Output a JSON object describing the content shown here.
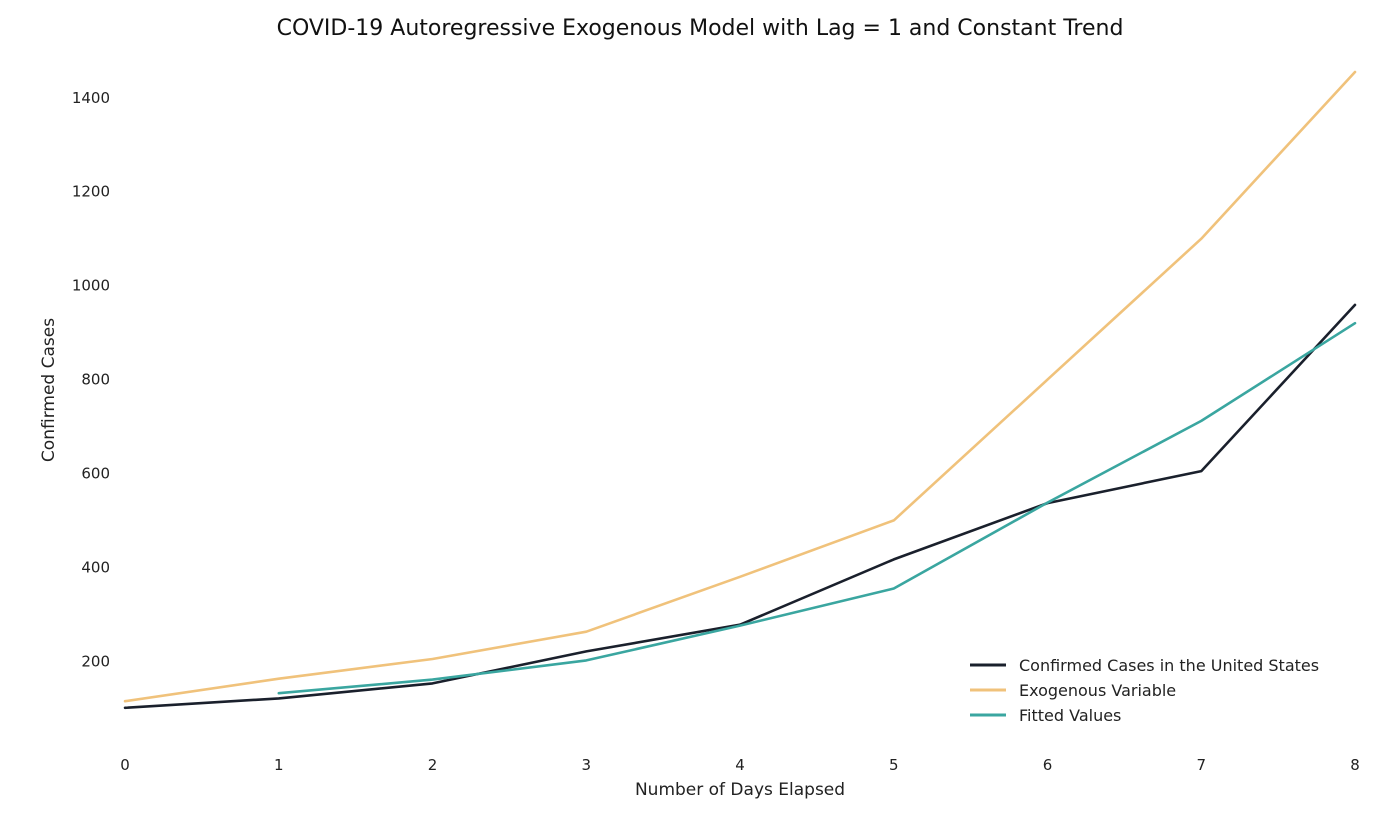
{
  "chart_data": {
    "type": "line",
    "title": "COVID-19 Autoregressive Exogenous Model with Lag = 1 and Constant Trend",
    "xlabel": "Number of Days Elapsed",
    "ylabel": "Confirmed Cases",
    "xlim": [
      0,
      8
    ],
    "ylim": [
      75,
      1455
    ],
    "x_ticks": [
      0,
      1,
      2,
      3,
      4,
      5,
      6,
      7,
      8
    ],
    "y_ticks": [
      200,
      400,
      600,
      800,
      1000,
      1200,
      1400
    ],
    "grid": false,
    "legend_position": "bottom-right",
    "series": [
      {
        "name": "Confirmed Cases in the United States",
        "color": "#1a202c",
        "x": [
          0,
          1,
          2,
          3,
          4,
          5,
          6,
          7,
          8
        ],
        "values": [
          101,
          121,
          153,
          221,
          278,
          417,
          537,
          605,
          959
        ]
      },
      {
        "name": "Exogenous Variable",
        "color": "#f0c27b",
        "x": [
          0,
          1,
          2,
          3,
          4,
          5,
          6,
          7,
          8
        ],
        "values": [
          115,
          163,
          205,
          263,
          380,
          500,
          800,
          1100,
          1455
        ]
      },
      {
        "name": "Fitted Values",
        "color": "#3aa6a0",
        "x": [
          1,
          2,
          3,
          4,
          5,
          6,
          7,
          8
        ],
        "values": [
          132,
          161,
          202,
          276,
          355,
          538,
          712,
          920
        ]
      }
    ]
  }
}
